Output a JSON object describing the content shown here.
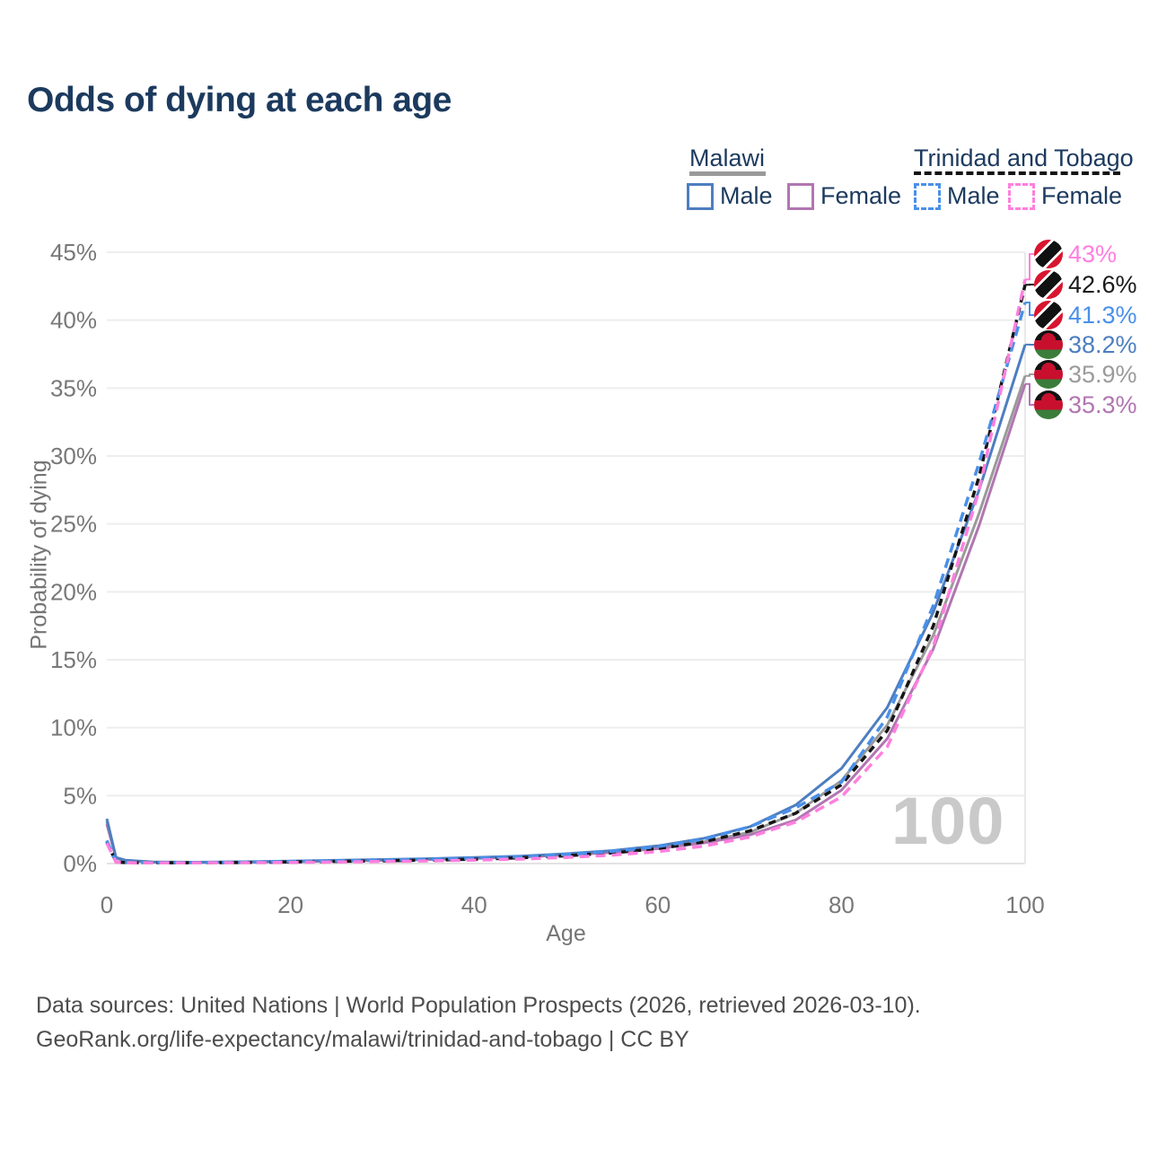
{
  "title": "Odds of dying at each age",
  "watermark_age": "100",
  "legend": {
    "groups": [
      {
        "label": "Malawi",
        "line_style": "solid",
        "line_color": "#9a9a9a",
        "items": [
          {
            "label": "Male",
            "color": "#4d7ec0",
            "dashed": false
          },
          {
            "label": "Female",
            "color": "#b176b1",
            "dashed": false
          }
        ]
      },
      {
        "label": "Trinidad and Tobago",
        "line_style": "dashed",
        "line_color": "#141414",
        "items": [
          {
            "label": "Male",
            "color": "#4a90e9",
            "dashed": true
          },
          {
            "label": "Female",
            "color": "#ff7fde",
            "dashed": true
          }
        ]
      }
    ]
  },
  "chart_data": {
    "type": "line",
    "title": "Odds of dying at each age",
    "xlabel": "Age",
    "ylabel": "Probability of dying",
    "xlim": [
      0,
      100
    ],
    "ylim": [
      0,
      45
    ],
    "x_ticks": [
      0,
      20,
      40,
      60,
      80,
      100
    ],
    "y_ticks": [
      0,
      5,
      10,
      15,
      20,
      25,
      30,
      35,
      40,
      45
    ],
    "y_tick_suffix": "%",
    "grid": "horizontal",
    "legend_position": "top-right",
    "x": [
      0,
      1,
      2,
      5,
      10,
      15,
      20,
      25,
      30,
      35,
      40,
      45,
      50,
      55,
      60,
      65,
      70,
      75,
      80,
      85,
      90,
      95,
      100
    ],
    "series": [
      {
        "name": "Malawi — Total",
        "country": "Malawi",
        "sex": "total",
        "color": "#9a9a9a",
        "dashed": false,
        "values": [
          3.1,
          0.42,
          0.23,
          0.11,
          0.09,
          0.11,
          0.15,
          0.2,
          0.25,
          0.31,
          0.38,
          0.48,
          0.63,
          0.84,
          1.15,
          1.6,
          2.3,
          3.7,
          6.1,
          10.2,
          16.8,
          25.8,
          35.9
        ]
      },
      {
        "name": "Malawi — Female",
        "country": "Malawi",
        "sex": "female",
        "color": "#b176b1",
        "dashed": false,
        "values": [
          2.9,
          0.4,
          0.22,
          0.1,
          0.08,
          0.1,
          0.13,
          0.18,
          0.24,
          0.3,
          0.38,
          0.48,
          0.62,
          0.82,
          1.1,
          1.52,
          2.1,
          3.2,
          5.4,
          9.2,
          15.8,
          24.9,
          35.3
        ]
      },
      {
        "name": "Malawi — Male",
        "country": "Malawi",
        "sex": "male",
        "color": "#4d7ec0",
        "dashed": false,
        "values": [
          3.3,
          0.45,
          0.25,
          0.12,
          0.1,
          0.13,
          0.18,
          0.24,
          0.3,
          0.36,
          0.44,
          0.55,
          0.72,
          0.95,
          1.3,
          1.85,
          2.7,
          4.3,
          7.0,
          11.5,
          18.5,
          27.5,
          38.2
        ]
      },
      {
        "name": "Trinidad and Tobago — Total",
        "country": "Trinidad and Tobago",
        "sex": "total",
        "color": "#141414",
        "dashed": true,
        "values": [
          1.6,
          0.11,
          0.07,
          0.05,
          0.06,
          0.08,
          0.12,
          0.16,
          0.2,
          0.25,
          0.32,
          0.42,
          0.57,
          0.78,
          1.1,
          1.6,
          2.4,
          3.7,
          5.8,
          9.8,
          17.5,
          28.5,
          42.6
        ]
      },
      {
        "name": "Trinidad and Tobago — Male",
        "country": "Trinidad and Tobago",
        "sex": "male",
        "color": "#4a90e9",
        "dashed": true,
        "values": [
          1.7,
          0.12,
          0.08,
          0.06,
          0.07,
          0.1,
          0.15,
          0.2,
          0.25,
          0.31,
          0.39,
          0.5,
          0.66,
          0.9,
          1.25,
          1.8,
          2.7,
          4.1,
          6.0,
          10.8,
          19.0,
          29.5,
          41.3
        ]
      },
      {
        "name": "Trinidad and Tobago — Female",
        "country": "Trinidad and Tobago",
        "sex": "female",
        "color": "#ff7fde",
        "dashed": true,
        "values": [
          1.5,
          0.1,
          0.06,
          0.05,
          0.05,
          0.06,
          0.08,
          0.11,
          0.15,
          0.19,
          0.25,
          0.33,
          0.45,
          0.62,
          0.88,
          1.28,
          1.95,
          3.05,
          4.9,
          8.6,
          16.0,
          27.5,
          43.0
        ]
      }
    ]
  },
  "end_labels": [
    {
      "text": "43%",
      "color": "#ff7fde",
      "flag": "trinidad-and-tobago",
      "series_index": 5
    },
    {
      "text": "42.6%",
      "color": "#1a1a1a",
      "flag": "trinidad-and-tobago",
      "series_index": 3
    },
    {
      "text": "41.3%",
      "color": "#4a90e9",
      "flag": "trinidad-and-tobago",
      "series_index": 4
    },
    {
      "text": "38.2%",
      "color": "#4d7ec0",
      "flag": "malawi",
      "series_index": 2
    },
    {
      "text": "35.9%",
      "color": "#9b9b9b",
      "flag": "malawi",
      "series_index": 0
    },
    {
      "text": "35.3%",
      "color": "#b176b1",
      "flag": "malawi",
      "series_index": 1
    }
  ],
  "source": {
    "line1": "Data sources: United Nations | World Population Prospects (2026, retrieved 2026-03-10).",
    "line2": "GeoRank.org/life-expectancy/malawi/trinidad-and-tobago | CC BY"
  }
}
